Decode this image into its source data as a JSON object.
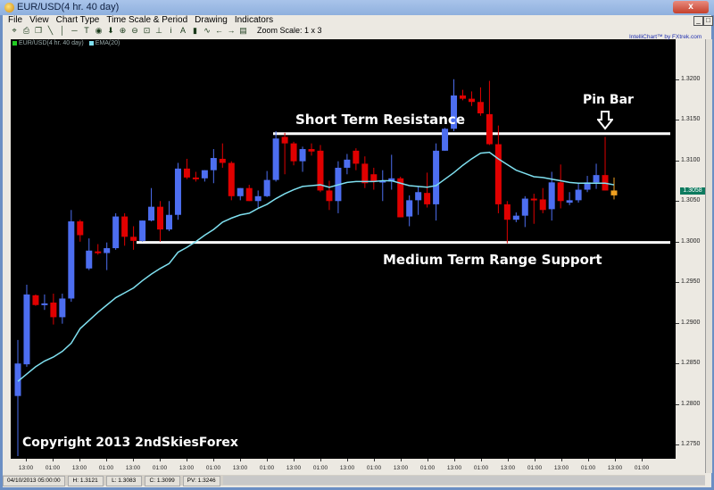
{
  "window": {
    "title": "EUR/USD(4 hr.  40 day)",
    "close_label": "x"
  },
  "menu": [
    "File",
    "View",
    "Chart Type",
    "Time Scale & Period",
    "Drawing",
    "Indicators"
  ],
  "toolbar": {
    "icons": [
      "crosshair-icon",
      "printer-icon",
      "copy-icon",
      "diagonal-line-icon",
      "vertical-line-icon",
      "horizontal-line-icon",
      "text-icon",
      "circle-icon",
      "down-arrow-icon",
      "zoom-in-icon",
      "zoom-out-icon",
      "fit-icon",
      "bottom-icon",
      "info-icon",
      "font-icon",
      "bar-chart-icon",
      "indicator-icon",
      "left-arrow-icon",
      "right-arrow-icon",
      "flag-icon"
    ],
    "glyphs": [
      "⌖",
      "⎙",
      "❐",
      "╲",
      "│",
      "─",
      "T",
      "◉",
      "⬇",
      "⊕",
      "⊖",
      "⊡",
      "⊥",
      "i",
      "A",
      "▮",
      "∿",
      "←",
      "→",
      "▤"
    ],
    "zoom_scale": "Zoom Scale: 1 x 3"
  },
  "credit": "IntelliChart™ by FXtrek.com",
  "legend": [
    {
      "label": "EUR/USD(4 hr.  40 day)",
      "color": "#22cc22"
    },
    {
      "label": "EMA(20)",
      "color": "#7fe0f0"
    }
  ],
  "status": {
    "datetime": "04/10/2013 05:00:00",
    "high": "H: 1.3121",
    "low": "L: 1.3083",
    "close": "C: 1.3099",
    "pv": "PV: 1.3246"
  },
  "annotations": {
    "resistance_label": "Short Term Resistance",
    "support_label": "Medium Term Range Support",
    "pin_bar_label": "Pin Bar",
    "copyright": "Copyright 2013 2ndSkiesForex"
  },
  "chart_data": {
    "type": "candlestick",
    "title": "EUR/USD(4 hr.  40 day)",
    "ylim": [
      1.2734,
      1.3306
    ],
    "y_ticks": [
      "1.3200",
      "1.3150",
      "1.3100",
      "1.3050",
      "1.3000",
      "1.2950",
      "1.2900",
      "1.2850",
      "1.2800",
      "1.2750"
    ],
    "x_ticks": [
      "13:00",
      "01:00",
      "13:00",
      "01:00",
      "13:00",
      "01:00",
      "13:00",
      "01:00",
      "13:00",
      "01:00",
      "13:00",
      "01:00",
      "13:00",
      "01:00",
      "13:00",
      "01:00",
      "13:00",
      "01:00",
      "13:00",
      "01:00",
      "13:00",
      "01:00",
      "13:00",
      "01:00"
    ],
    "last_price": "1.3058",
    "colors": {
      "up": "#4d6ef0",
      "down": "#e00000",
      "current": "#f0a020",
      "ema": "#7fe0f0",
      "lines": "#ffffff"
    },
    "levels": [
      {
        "name": "Short Term Resistance",
        "price": 1.3133
      },
      {
        "name": "Medium Term Range Support",
        "price": 1.2999
      }
    ],
    "ohlc": [
      [
        1.281,
        1.2879,
        1.2736,
        1.285
      ],
      [
        1.2849,
        1.2947,
        1.2846,
        1.2935
      ],
      [
        1.2934,
        1.2935,
        1.2921,
        1.2922
      ],
      [
        1.2922,
        1.2935,
        1.2916,
        1.2924
      ],
      [
        1.2925,
        1.2936,
        1.2898,
        1.2907
      ],
      [
        1.2907,
        1.2936,
        1.2899,
        1.293
      ],
      [
        1.293,
        1.3039,
        1.2926,
        1.3025
      ],
      [
        1.3025,
        1.3027,
        1.3,
        1.3008
      ],
      [
        1.2967,
        1.3004,
        1.2965,
        1.2989
      ],
      [
        1.2988,
        1.2997,
        1.2984,
        1.2987
      ],
      [
        1.2986,
        1.2999,
        1.2965,
        1.2992
      ],
      [
        1.2992,
        1.3035,
        1.299,
        1.3031
      ],
      [
        1.3031,
        1.3035,
        1.2995,
        1.3006
      ],
      [
        1.3006,
        1.3019,
        1.299,
        1.3001
      ],
      [
        1.3001,
        1.3026,
        1.3,
        1.3026
      ],
      [
        1.3026,
        1.3066,
        1.3025,
        1.3043
      ],
      [
        1.3043,
        1.305,
        1.3,
        1.3015
      ],
      [
        1.3015,
        1.305,
        1.3013,
        1.3033
      ],
      [
        1.3033,
        1.3097,
        1.3027,
        1.309
      ],
      [
        1.309,
        1.3102,
        1.3077,
        1.3079
      ],
      [
        1.3079,
        1.3086,
        1.3074,
        1.3077
      ],
      [
        1.3078,
        1.3088,
        1.3074,
        1.3088
      ],
      [
        1.3088,
        1.3114,
        1.3072,
        1.3103
      ],
      [
        1.3102,
        1.3121,
        1.3091,
        1.3097
      ],
      [
        1.3097,
        1.3099,
        1.3051,
        1.3056
      ],
      [
        1.3056,
        1.3066,
        1.3051,
        1.3066
      ],
      [
        1.3066,
        1.307,
        1.305,
        1.305
      ],
      [
        1.305,
        1.3063,
        1.3042,
        1.3056
      ],
      [
        1.3056,
        1.3087,
        1.3055,
        1.3076
      ],
      [
        1.3076,
        1.3136,
        1.3074,
        1.3127
      ],
      [
        1.3129,
        1.3134,
        1.3083,
        1.3121
      ],
      [
        1.3121,
        1.3123,
        1.3094,
        1.3099
      ],
      [
        1.3099,
        1.3117,
        1.3086,
        1.3114
      ],
      [
        1.3114,
        1.3121,
        1.3106,
        1.3111
      ],
      [
        1.3112,
        1.3119,
        1.3061,
        1.3063
      ],
      [
        1.3063,
        1.3075,
        1.3039,
        1.305
      ],
      [
        1.305,
        1.3099,
        1.3035,
        1.3091
      ],
      [
        1.3091,
        1.3108,
        1.3083,
        1.3101
      ],
      [
        1.3112,
        1.3115,
        1.3088,
        1.3096
      ],
      [
        1.3096,
        1.3105,
        1.3066,
        1.3072
      ],
      [
        1.3083,
        1.3091,
        1.3064,
        1.3074
      ],
      [
        1.3073,
        1.3088,
        1.305,
        1.3075
      ],
      [
        1.3074,
        1.3107,
        1.3064,
        1.3078
      ],
      [
        1.3078,
        1.308,
        1.303,
        1.303
      ],
      [
        1.3031,
        1.3057,
        1.3019,
        1.3051
      ],
      [
        1.3051,
        1.3068,
        1.3033,
        1.3061
      ],
      [
        1.306,
        1.3085,
        1.3042,
        1.3046
      ],
      [
        1.3046,
        1.3121,
        1.3026,
        1.3112
      ],
      [
        1.3112,
        1.314,
        1.3112,
        1.3139
      ],
      [
        1.3139,
        1.32,
        1.3136,
        1.318
      ],
      [
        1.318,
        1.3187,
        1.3174,
        1.3176
      ],
      [
        1.3176,
        1.3185,
        1.3167,
        1.3172
      ],
      [
        1.3172,
        1.319,
        1.3155,
        1.3158
      ],
      [
        1.3157,
        1.3198,
        1.3119,
        1.312
      ],
      [
        1.312,
        1.3143,
        1.3035,
        1.3046
      ],
      [
        1.3046,
        1.305,
        1.2998,
        1.3027
      ],
      [
        1.3027,
        1.3036,
        1.3024,
        1.3032
      ],
      [
        1.3032,
        1.3056,
        1.3018,
        1.3053
      ],
      [
        1.3053,
        1.3059,
        1.3022,
        1.3051
      ],
      [
        1.3052,
        1.3066,
        1.3035,
        1.3039
      ],
      [
        1.304,
        1.3086,
        1.3026,
        1.3073
      ],
      [
        1.3073,
        1.3095,
        1.3041,
        1.305
      ],
      [
        1.3048,
        1.3061,
        1.3045,
        1.3051
      ],
      [
        1.3051,
        1.3072,
        1.3048,
        1.3064
      ],
      [
        1.3064,
        1.3081,
        1.3061,
        1.3073
      ],
      [
        1.3073,
        1.3096,
        1.3065,
        1.3082
      ],
      [
        1.3082,
        1.3129,
        1.3063,
        1.3063
      ],
      [
        1.3063,
        1.3079,
        1.3052,
        1.3057
      ]
    ],
    "ema": [
      1.2828,
      1.2837,
      1.2846,
      1.2853,
      1.2858,
      1.2865,
      1.2875,
      1.2893,
      1.2903,
      1.2913,
      1.2922,
      1.2931,
      1.2937,
      1.2943,
      1.2952,
      1.296,
      1.2967,
      1.2973,
      1.2987,
      1.2993,
      1.3,
      1.3008,
      1.3015,
      1.3024,
      1.3029,
      1.3033,
      1.3035,
      1.3041,
      1.3046,
      1.3053,
      1.3059,
      1.3064,
      1.3068,
      1.3069,
      1.307,
      1.3067,
      1.307,
      1.3073,
      1.3074,
      1.3074,
      1.3074,
      1.3075,
      1.3075,
      1.3072,
      1.3069,
      1.3068,
      1.3067,
      1.3069,
      1.3077,
      1.3085,
      1.3094,
      1.3102,
      1.3109,
      1.311,
      1.3102,
      1.3095,
      1.3088,
      1.3084,
      1.308,
      1.3079,
      1.3077,
      1.3075,
      1.3073,
      1.3072,
      1.3072,
      1.3072,
      1.3072,
      1.307
    ]
  }
}
